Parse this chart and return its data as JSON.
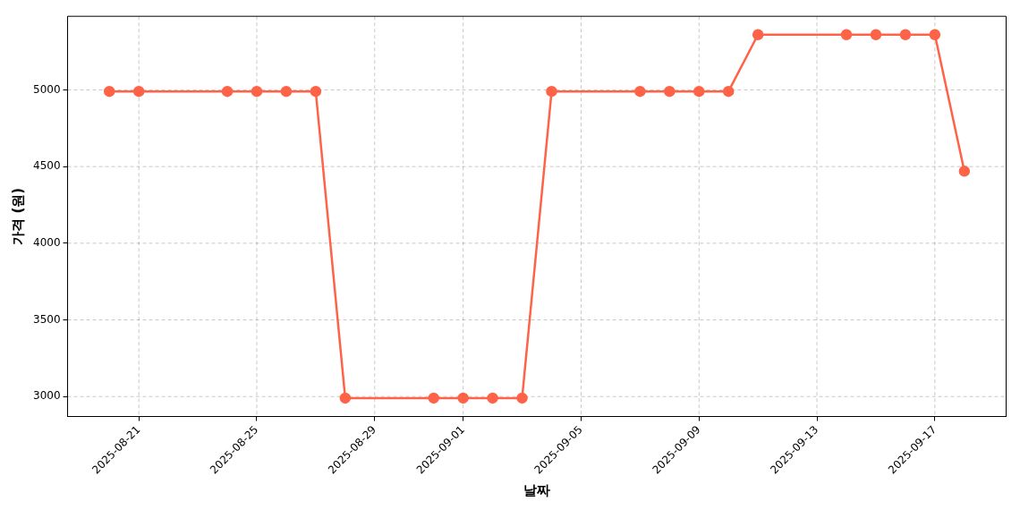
{
  "chart_data": {
    "type": "line",
    "xlabel": "날짜",
    "ylabel": "가격 (원)",
    "x": [
      "2025-08-20",
      "2025-08-21",
      "2025-08-24",
      "2025-08-25",
      "2025-08-26",
      "2025-08-27",
      "2025-08-28",
      "2025-08-31",
      "2025-09-01",
      "2025-09-02",
      "2025-09-03",
      "2025-09-04",
      "2025-09-07",
      "2025-09-08",
      "2025-09-09",
      "2025-09-10",
      "2025-09-11",
      "2025-09-14",
      "2025-09-15",
      "2025-09-16",
      "2025-09-17",
      "2025-09-18"
    ],
    "series": [
      {
        "color": "#ff6347",
        "values": [
          4990,
          4990,
          4990,
          4990,
          4990,
          4990,
          2990,
          2990,
          2990,
          2990,
          2990,
          4990,
          4990,
          4990,
          4990,
          4990,
          5360,
          5360,
          5360,
          5360,
          5360,
          4470
        ]
      }
    ],
    "xlim": [
      "2025-08-18T14:00",
      "2025-09-19T10:00"
    ],
    "xticks": [
      "2025-08-21",
      "2025-08-25",
      "2025-08-29",
      "2025-09-01",
      "2025-09-05",
      "2025-09-09",
      "2025-09-13",
      "2025-09-17"
    ],
    "ylim": [
      2870,
      5480
    ],
    "yticks": [
      3000,
      3500,
      4000,
      4500,
      5000
    ],
    "grid": true,
    "marker": "circle",
    "line_style": "solid",
    "legend": false
  }
}
